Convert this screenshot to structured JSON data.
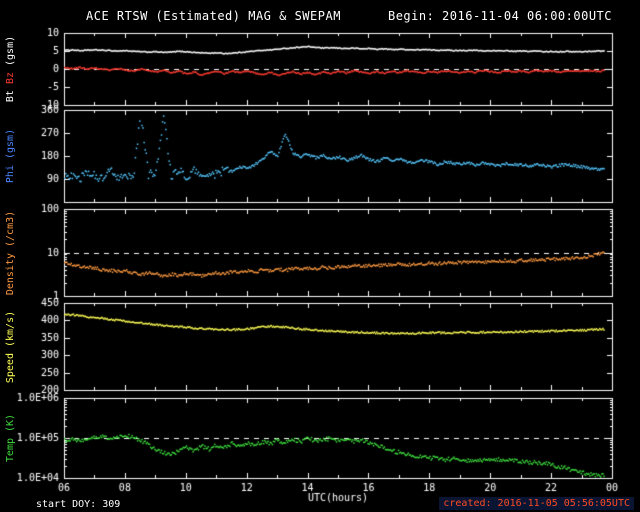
{
  "footer": {
    "start_doy": "start DOY: 309",
    "created": "created: 2016-11-05 05:56:05UTC"
  },
  "colors": {
    "bg": "#000000",
    "frame": "#ffffff",
    "text": "#ffffff",
    "created": "#ff4a22",
    "created_bg": "rgba(30,60,150,0.35)"
  },
  "chart_data": {
    "type": "scatter",
    "title": "ACE RTSW (Estimated) MAG & SWEPAM",
    "begin": "Begin: 2016-11-04 06:00:00UTC",
    "x": {
      "label": "UTC(hours)",
      "start": 6.0,
      "step": 0.25,
      "range": [
        6,
        24
      ],
      "ticks_major": [
        6,
        8,
        10,
        12,
        14,
        16,
        18,
        20,
        22,
        24
      ],
      "tick_labels": [
        "06",
        "08",
        "10",
        "12",
        "14",
        "16",
        "18",
        "20",
        "22",
        "00"
      ]
    },
    "panels": [
      {
        "id": "bt-bz",
        "scale": "linear",
        "ylim": [
          -10,
          10
        ],
        "yticks": [
          -10,
          -5,
          0,
          5,
          10
        ],
        "ytick_labels": [
          "-10",
          "-5",
          "0",
          "5",
          "10"
        ],
        "dashed": [
          0
        ],
        "ylabel_parts": [
          {
            "text": "Bt ",
            "color": "#ffffff"
          },
          {
            "text": "Bz",
            "color": "#ff3b30"
          },
          {
            "text": " (gsm)",
            "color": "#ffffff"
          }
        ],
        "series": [
          {
            "name": "Bt",
            "color": "#ffffff",
            "jitter": 0.12,
            "values": [
              5.4,
              5.5,
              5.3,
              5.4,
              5.5,
              5.4,
              5.3,
              5.2,
              5.3,
              5.1,
              5.0,
              4.9,
              5.0,
              4.8,
              4.9,
              5.1,
              5.0,
              4.8,
              4.7,
              4.6,
              4.7,
              4.5,
              4.6,
              4.8,
              5.0,
              5.2,
              5.4,
              5.5,
              5.7,
              5.9,
              6.1,
              6.3,
              6.4,
              6.2,
              6.0,
              6.1,
              6.0,
              5.9,
              6.0,
              5.8,
              5.9,
              5.7,
              5.8,
              5.6,
              5.7,
              5.6,
              5.5,
              5.6,
              5.5,
              5.4,
              5.5,
              5.3,
              5.4,
              5.3,
              5.4,
              5.2,
              5.3,
              5.2,
              5.3,
              5.1,
              5.2,
              5.1,
              5.2,
              5.0,
              5.1,
              5.0,
              5.1,
              5.0,
              5.0,
              5.1,
              5.2,
              5.2
            ]
          },
          {
            "name": "Bz",
            "color": "#ff3b30",
            "jitter": 0.2,
            "values": [
              0.5,
              0.3,
              0.6,
              0.2,
              0.4,
              0.1,
              -0.2,
              0.3,
              0.0,
              -0.4,
              0.2,
              -0.3,
              -0.6,
              -0.2,
              -0.8,
              -0.4,
              -1.2,
              -0.6,
              -1.5,
              -0.9,
              -0.5,
              -1.1,
              -0.4,
              -0.8,
              -0.3,
              -0.9,
              -1.3,
              -0.7,
              -1.6,
              -1.0,
              -0.5,
              -1.2,
              -0.8,
              -1.4,
              -0.6,
              -1.0,
              -0.4,
              -0.9,
              -0.3,
              -0.7,
              -1.1,
              -0.5,
              -0.9,
              -0.4,
              -0.8,
              -0.2,
              -0.6,
              -1.0,
              -0.4,
              -0.8,
              -0.3,
              -0.6,
              -0.9,
              -0.4,
              -0.7,
              -0.2,
              -0.5,
              -0.8,
              -0.3,
              -0.6,
              -0.4,
              -0.7,
              -0.2,
              -0.5,
              -0.3,
              -0.6,
              -0.4,
              -0.2,
              -0.5,
              -0.3,
              -0.4,
              -0.3
            ]
          }
        ]
      },
      {
        "id": "phi",
        "scale": "linear",
        "ylim": [
          0,
          360
        ],
        "yticks": [
          90,
          180,
          270,
          360
        ],
        "ytick_labels": [
          "90",
          "180",
          "270",
          "360"
        ],
        "dashed": [],
        "ylabel_parts": [
          {
            "text": "Phi (gsm)",
            "color": "#4a86ff"
          }
        ],
        "series": [
          {
            "name": "Phi",
            "color": "#55c8ff",
            "jitter": 5,
            "jitter_early": {
              "until": 11.5,
              "amount": 16
            },
            "values": [
              100,
              110,
              95,
              120,
              105,
              90,
              130,
              100,
              115,
              95,
              350,
              110,
              120,
              340,
              100,
              130,
              95,
              125,
              105,
              115,
              110,
              130,
              120,
              140,
              135,
              150,
              170,
              200,
              185,
              270,
              195,
              180,
              190,
              175,
              185,
              170,
              180,
              165,
              175,
              185,
              170,
              160,
              175,
              165,
              170,
              160,
              155,
              165,
              160,
              150,
              160,
              155,
              150,
              158,
              148,
              155,
              150,
              145,
              152,
              148,
              150,
              143,
              148,
              145,
              140,
              146,
              150,
              144,
              140,
              135,
              130,
              132
            ]
          }
        ]
      },
      {
        "id": "density",
        "scale": "log",
        "ylim": [
          1,
          100
        ],
        "yticks": [
          1,
          10,
          100
        ],
        "ytick_labels": [
          "1",
          "10",
          "100"
        ],
        "dashed": [
          10
        ],
        "ylabel_parts": [
          {
            "text": "Density (/cm3)",
            "color": "#ff9a40"
          }
        ],
        "series": [
          {
            "name": "Density",
            "color": "#ff9a40",
            "jitter": 0.035,
            "values": [
              6.0,
              5.5,
              5.0,
              4.8,
              4.5,
              4.2,
              4.0,
              3.8,
              4.0,
              3.5,
              3.2,
              3.6,
              3.4,
              3.0,
              3.3,
              3.1,
              3.5,
              3.2,
              3.0,
              3.4,
              3.6,
              3.3,
              3.8,
              3.5,
              4.0,
              3.7,
              4.2,
              3.9,
              4.3,
              4.0,
              4.5,
              4.2,
              4.6,
              4.3,
              4.8,
              4.5,
              5.0,
              4.7,
              5.2,
              4.9,
              5.4,
              5.1,
              5.5,
              5.3,
              5.6,
              5.4,
              5.8,
              5.5,
              6.0,
              5.7,
              6.2,
              5.9,
              6.3,
              6.0,
              6.5,
              6.2,
              6.6,
              6.4,
              6.8,
              6.5,
              7.0,
              6.8,
              7.2,
              7.0,
              7.4,
              7.2,
              7.6,
              7.8,
              8.0,
              8.5,
              9.5,
              10.5
            ]
          }
        ]
      },
      {
        "id": "speed",
        "scale": "linear",
        "ylim": [
          200,
          450
        ],
        "yticks": [
          200,
          250,
          300,
          350,
          400,
          450
        ],
        "ytick_labels": [
          "200",
          "250",
          "300",
          "350",
          "400",
          "450"
        ],
        "dashed": [],
        "ylabel_parts": [
          {
            "text": "Speed (km/s)",
            "color": "#ffff55"
          }
        ],
        "series": [
          {
            "name": "Speed",
            "color": "#ffff55",
            "jitter": 2.5,
            "values": [
              420,
              418,
              415,
              412,
              410,
              408,
              405,
              402,
              400,
              397,
              395,
              392,
              390,
              388,
              386,
              384,
              382,
              380,
              379,
              378,
              377,
              376,
              375,
              376,
              378,
              380,
              383,
              385,
              384,
              382,
              380,
              378,
              376,
              374,
              372,
              371,
              370,
              369,
              368,
              368,
              367,
              366,
              366,
              365,
              365,
              366,
              365,
              366,
              366,
              367,
              366,
              367,
              367,
              368,
              367,
              368,
              368,
              369,
              368,
              369,
              370,
              370,
              371,
              371,
              372,
              372,
              373,
              374,
              374,
              375,
              376,
              377
            ]
          }
        ]
      },
      {
        "id": "temp",
        "scale": "log",
        "ylim": [
          10000,
          1000000
        ],
        "yticks": [
          10000,
          100000,
          1000000
        ],
        "ytick_labels": [
          "1.0E+04",
          "1.0E+05",
          "1.0E+06"
        ],
        "dashed": [
          100000
        ],
        "ylabel_parts": [
          {
            "text": "Temp (K)",
            "color": "#3ddc3d"
          }
        ],
        "series": [
          {
            "name": "Temp",
            "color": "#3ddc3d",
            "jitter": 0.05,
            "values": [
              90000,
              95000,
              88000,
              100000,
              105000,
              110000,
              100000,
              115000,
              120000,
              110000,
              90000,
              70000,
              55000,
              45000,
              40000,
              50000,
              60000,
              50000,
              65000,
              55000,
              70000,
              60000,
              75000,
              65000,
              80000,
              70000,
              85000,
              75000,
              90000,
              80000,
              95000,
              85000,
              100000,
              90000,
              95000,
              100000,
              90000,
              95000,
              85000,
              90000,
              80000,
              70000,
              60000,
              50000,
              45000,
              40000,
              38000,
              35000,
              33000,
              32000,
              30000,
              32000,
              30000,
              28000,
              30000,
              29000,
              28000,
              30000,
              29000,
              28000,
              27000,
              26000,
              25000,
              24000,
              22000,
              20000,
              18000,
              16000,
              14000,
              13000,
              12000,
              12000
            ]
          }
        ]
      }
    ]
  }
}
